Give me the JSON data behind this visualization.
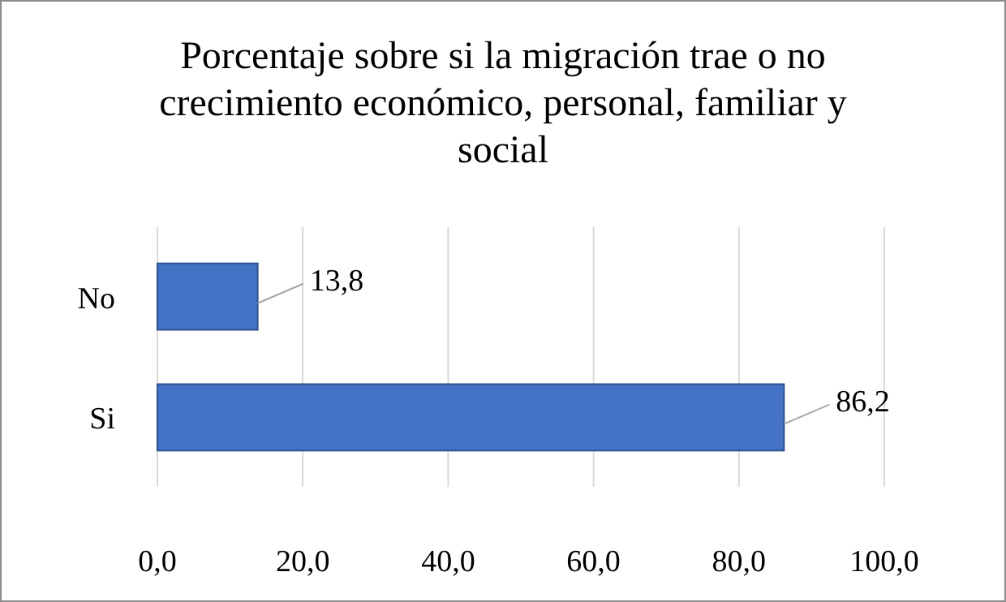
{
  "chart_data": {
    "type": "bar",
    "orientation": "horizontal",
    "title": "Porcentaje sobre si la migración trae o no crecimiento económico, personal, familiar y social",
    "categories": [
      "No",
      "Si"
    ],
    "values": [
      13.8,
      86.2
    ],
    "value_labels": [
      "13,8",
      "86,2"
    ],
    "color": "#4472c4",
    "xlim": [
      0,
      100
    ],
    "xticks": [
      {
        "value": 0,
        "label": "0,0"
      },
      {
        "value": 20,
        "label": "20,0"
      },
      {
        "value": 40,
        "label": "40,0"
      },
      {
        "value": 60,
        "label": "60,0"
      },
      {
        "value": 80,
        "label": "80,0"
      },
      {
        "value": 100,
        "label": "100,0"
      }
    ],
    "grid": "x"
  }
}
